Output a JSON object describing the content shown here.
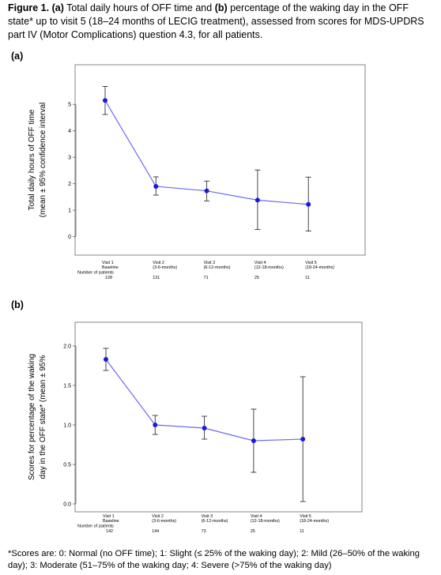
{
  "caption": {
    "figure": "Figure 1.",
    "a_marker": "(a)",
    "text_1": " Total daily hours of OFF time and ",
    "b_marker": "(b)",
    "text_2": " percentage of the waking day in the OFF state* up to visit 5 (18–24 months of LECIG treatment), assessed from scores for MDS-UPDRS part IV (Motor Complications) question 4.3, for all patients."
  },
  "panel_a_label": "(a)",
  "panel_b_label": "(b)",
  "footnote": "*Scores are: 0: Normal (no OFF time);  1: Slight (≤ 25% of the waking day); 2: Mild (26–50% of the waking day); 3: Moderate (51–75% of the waking day; 4: Severe (>75% of the waking day)",
  "colors": {
    "line": "#6b6bef",
    "marker": "#1a1ad8",
    "errorbar": "#333333",
    "axis": "#666666"
  },
  "chart_data": [
    {
      "type": "line",
      "panel": "a",
      "ylabel_line1": "Total daily hours of OFF time",
      "ylabel_line2": "(mean ± 95% confidence interval",
      "ylim": [
        -0.7,
        6.5
      ],
      "yticks": [
        "0",
        "1",
        "2",
        "3",
        "4",
        "5"
      ],
      "categories": [
        "Visit 1",
        "Visit 2",
        "Visit 3",
        "Visit 4",
        "Visit 5"
      ],
      "category_sublabels": [
        "Baseline",
        "(3-6-months)",
        "(6-12-months)",
        "(12-18-months)",
        "(18-24-months)"
      ],
      "patients_label_1": "Number of",
      "patients_label_2": "patients",
      "patients": [
        "128",
        "131",
        "71",
        "25",
        "11"
      ],
      "values": [
        5.15,
        1.9,
        1.73,
        1.38,
        1.22
      ],
      "ci_low": [
        4.62,
        1.57,
        1.35,
        0.27,
        0.21
      ],
      "ci_high": [
        5.68,
        2.26,
        2.1,
        2.52,
        2.25
      ],
      "grid": false
    },
    {
      "type": "line",
      "panel": "b",
      "ylabel_line1": "Scores for percentage of the waking",
      "ylabel_line2": "day in the OFF state* (mean ± 95%",
      "ylim": [
        -0.1,
        2.3
      ],
      "yticks": [
        "0.0",
        "0.5",
        "1.0",
        "1.5",
        "2.0"
      ],
      "categories": [
        "Visit 1",
        "Visit 2",
        "Visit 3",
        "Visit 4",
        "Visit 5"
      ],
      "category_sublabels": [
        "Baseline",
        "(3-6-months)",
        "(6-12-months)",
        "(12-18-months)",
        "(18-24-months)"
      ],
      "patients_label_1": "Number of",
      "patients_label_2": "patients",
      "patients": [
        "142",
        "144",
        "73",
        "25",
        "11"
      ],
      "values": [
        1.83,
        1.0,
        0.96,
        0.8,
        0.82
      ],
      "ci_low": [
        1.69,
        0.88,
        0.82,
        0.4,
        0.03
      ],
      "ci_high": [
        1.97,
        1.12,
        1.11,
        1.2,
        1.61
      ],
      "grid": false
    }
  ]
}
